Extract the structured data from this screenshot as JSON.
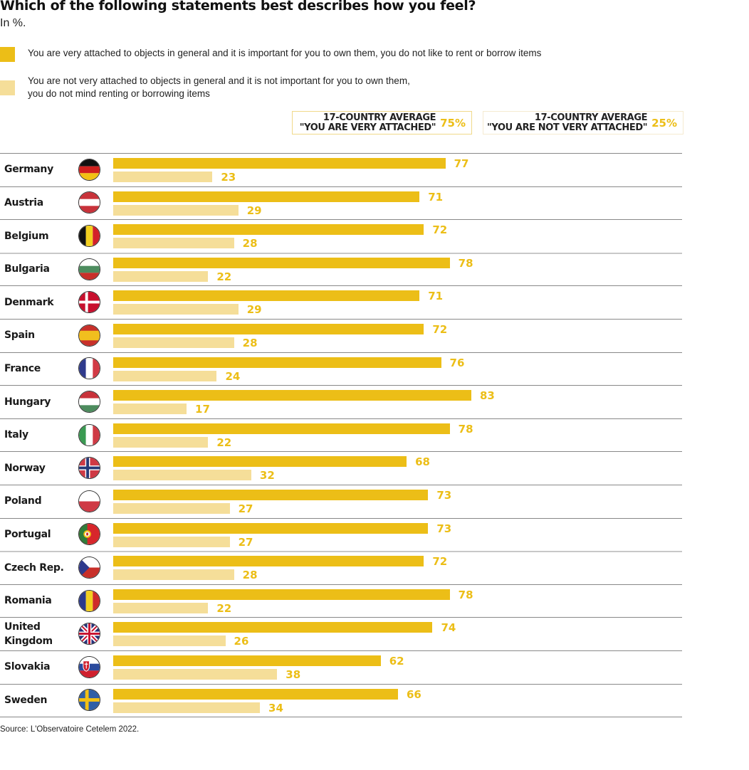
{
  "title": "Which of the following statements best describes how you feel?",
  "subtitle": "In %.",
  "colors": {
    "attached": "#ecbe17",
    "not_attached": "#f5de99",
    "accent_text": "#ecbe17"
  },
  "legend": [
    {
      "label": "You are very attached to objects in general and it is important for you to own them, you do not like to rent or borrow items",
      "color": "#ecbe17"
    },
    {
      "label": "You are not very attached to objects in general and it is not important for you to own them,\nyou do not mind renting or borrowing items",
      "color": "#f5de99"
    }
  ],
  "averages": [
    {
      "label": "17-COUNTRY AVERAGE\n\"YOU ARE VERY ATTACHED\"",
      "value": "75%"
    },
    {
      "label": "17-COUNTRY AVERAGE\n\"YOU ARE NOT VERY ATTACHED\"",
      "value": "25%"
    }
  ],
  "source": "Source: L'Observatoire Cetelem 2022.",
  "chart_data": {
    "type": "bar",
    "orientation": "horizontal",
    "title": "Which of the following statements best describes how you feel?",
    "subtitle": "In %.",
    "xlabel": "",
    "ylabel": "",
    "xlim": [
      0,
      100
    ],
    "grid": false,
    "legend_position": "top",
    "categories": [
      "Germany",
      "Austria",
      "Belgium",
      "Bulgaria",
      "Denmark",
      "Spain",
      "France",
      "Hungary",
      "Italy",
      "Norway",
      "Poland",
      "Portugal",
      "Czech Rep.",
      "Romania",
      "United\nKingdom",
      "Slovakia",
      "Sweden"
    ],
    "flags": [
      "germany-flag",
      "austria-flag",
      "belgium-flag",
      "bulgaria-flag",
      "denmark-flag",
      "spain-flag",
      "france-flag",
      "hungary-flag",
      "italy-flag",
      "norway-flag",
      "poland-flag",
      "portugal-flag",
      "czech-flag",
      "romania-flag",
      "uk-flag",
      "slovakia-flag",
      "sweden-flag"
    ],
    "series": [
      {
        "name": "You are very attached",
        "color": "#ecbe17",
        "values": [
          77,
          71,
          72,
          78,
          71,
          72,
          76,
          83,
          78,
          68,
          73,
          73,
          72,
          78,
          74,
          62,
          66
        ]
      },
      {
        "name": "You are not very attached",
        "color": "#f5de99",
        "values": [
          23,
          29,
          28,
          22,
          29,
          28,
          24,
          17,
          22,
          32,
          27,
          27,
          28,
          22,
          26,
          38,
          34
        ]
      }
    ],
    "averages": {
      "You are very attached": 75,
      "You are not very attached": 25
    }
  }
}
